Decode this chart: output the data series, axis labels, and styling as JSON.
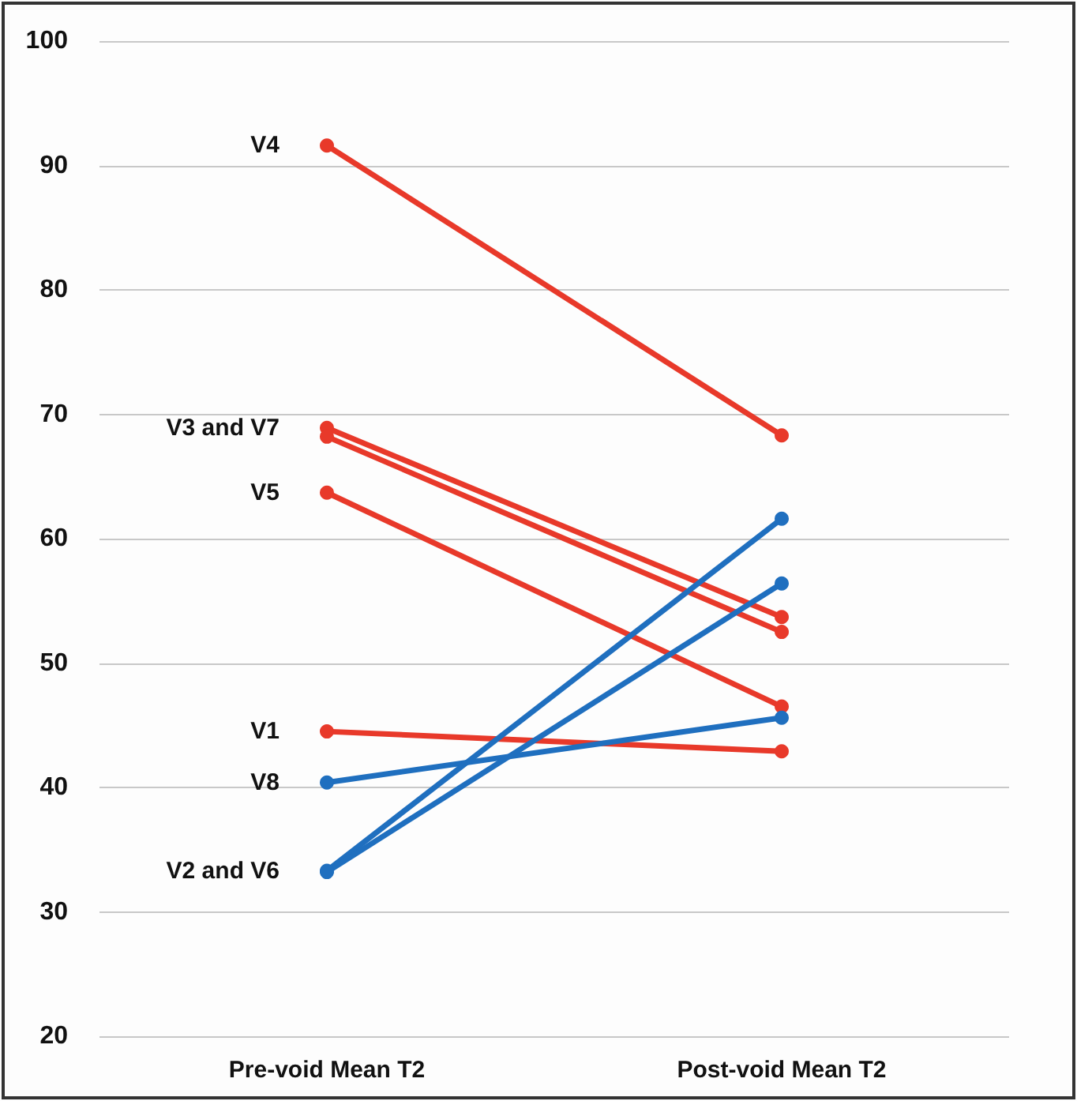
{
  "chart_data": {
    "type": "line",
    "categories": [
      "Pre-void Mean T2",
      "Post-void Mean T2"
    ],
    "series": [
      {
        "color": "#e8392a",
        "values": [
          91.6,
          68.3
        ]
      },
      {
        "color": "#e8392a",
        "values": [
          68.9,
          53.7
        ]
      },
      {
        "color": "#e8392a",
        "values": [
          68.2,
          52.5
        ]
      },
      {
        "color": "#e8392a",
        "values": [
          63.7,
          46.5
        ]
      },
      {
        "color": "#e8392a",
        "values": [
          44.5,
          42.9
        ]
      },
      {
        "color": "#1f6fbf",
        "values": [
          40.4,
          45.6
        ]
      },
      {
        "color": "#1f6fbf",
        "values": [
          33.3,
          61.6
        ]
      },
      {
        "color": "#1f6fbf",
        "values": [
          33.2,
          56.4
        ]
      }
    ],
    "ylim": [
      20,
      100
    ],
    "yticks": [
      20,
      30,
      40,
      50,
      60,
      70,
      80,
      90,
      100
    ],
    "grid": "y",
    "marker": "circle",
    "line_style": "solid",
    "annotations": [
      {
        "text": "V4",
        "x": "Pre-void Mean T2",
        "y": 91.6
      },
      {
        "text": "V3 and V7",
        "x": "Pre-void Mean T2",
        "y": 68.9
      },
      {
        "text": "V5",
        "x": "Pre-void Mean T2",
        "y": 63.7
      },
      {
        "text": "V1",
        "x": "Pre-void Mean T2",
        "y": 44.5
      },
      {
        "text": "V8",
        "x": "Pre-void Mean T2",
        "y": 40.4
      },
      {
        "text": "V2 and V6",
        "x": "Pre-void Mean T2",
        "y": 33.3
      }
    ]
  }
}
